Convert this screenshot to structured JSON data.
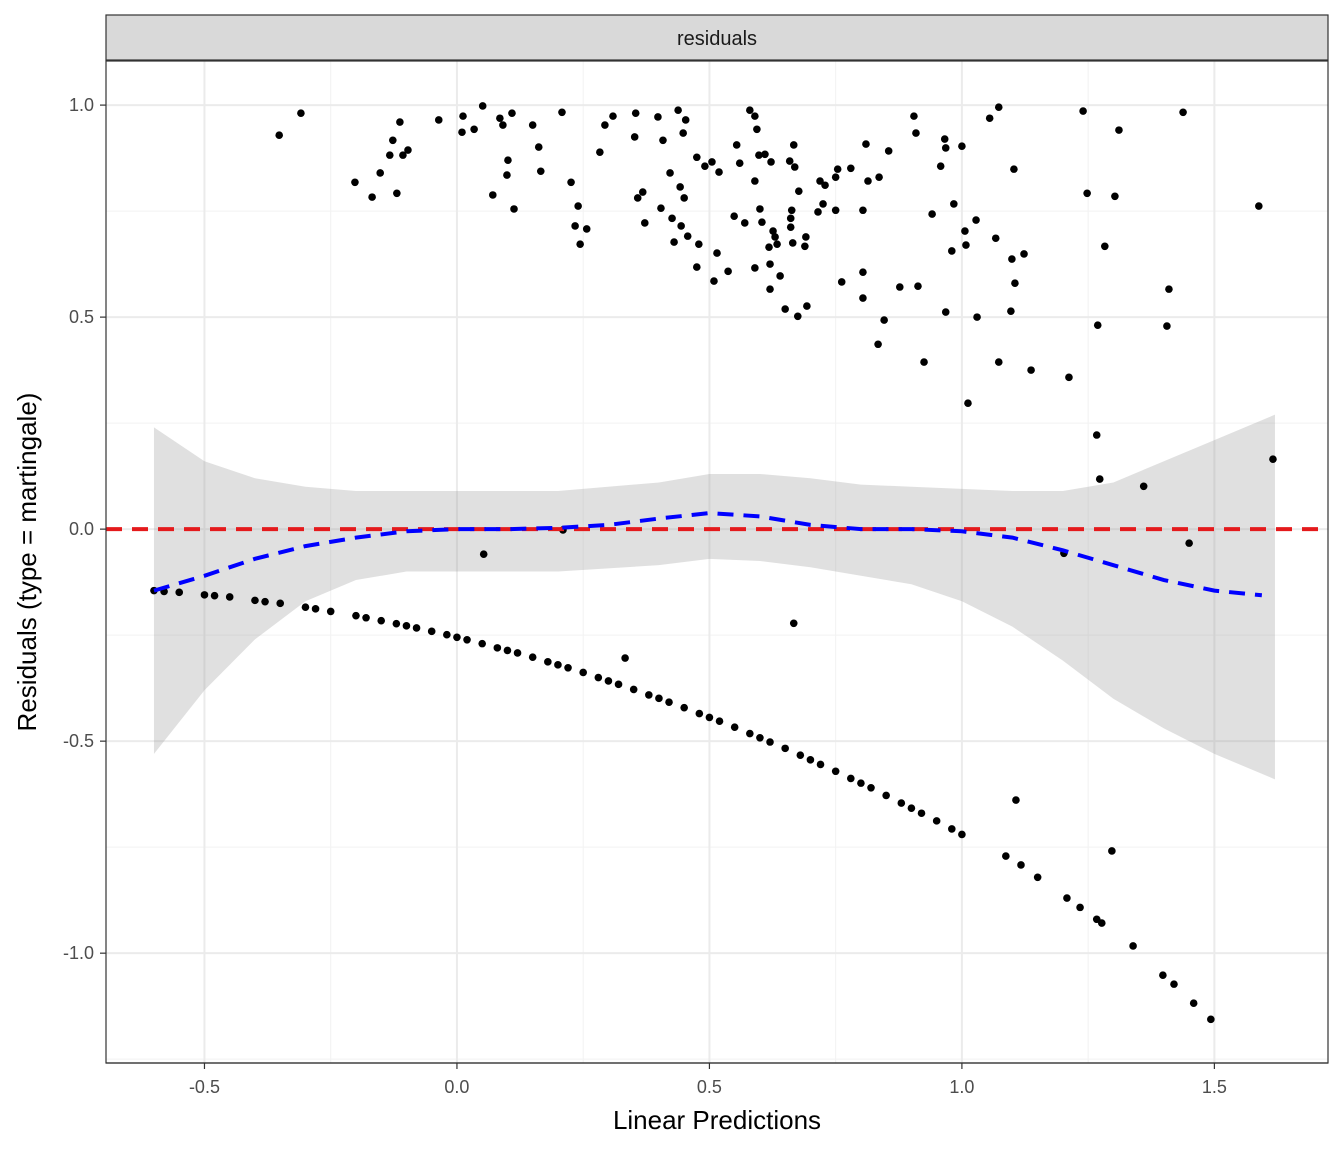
{
  "chart_data": {
    "type": "scatter",
    "strip_label": "residuals",
    "xlabel": "Linear Predictions",
    "ylabel": "Residuals (type = martingale)",
    "xlim": [
      -0.695,
      1.725
    ],
    "ylim": [
      -1.259,
      1.104
    ],
    "x_ticks": [
      -0.5,
      0.0,
      0.5,
      1.0,
      1.5
    ],
    "x_tick_labels": [
      "-0.5",
      "0.0",
      "0.5",
      "1.0",
      "1.5"
    ],
    "y_ticks": [
      1.0,
      0.5,
      0.0,
      -0.5,
      -1.0
    ],
    "y_tick_labels": [
      "1.0",
      "0.5",
      "0.0",
      "-0.5",
      "-1.0"
    ],
    "grid": true,
    "reference_line": {
      "y": 0,
      "color": "#e41a1c",
      "style": "dashed"
    },
    "smooth": {
      "color": "#0000ff",
      "style": "dashed",
      "x": [
        -0.6,
        -0.5,
        -0.4,
        -0.3,
        -0.2,
        -0.1,
        0,
        0.1,
        0.2,
        0.3,
        0.4,
        0.5,
        0.6,
        0.7,
        0.8,
        0.9,
        1.0,
        1.1,
        1.2,
        1.3,
        1.4,
        1.5,
        1.594
      ],
      "y": [
        -0.145,
        -0.11,
        -0.07,
        -0.04,
        -0.02,
        -0.005,
        0,
        0,
        0.003,
        0.01,
        0.025,
        0.038,
        0.03,
        0.01,
        0,
        0,
        -0.005,
        -0.02,
        -0.05,
        -0.085,
        -0.12,
        -0.145,
        -0.156
      ],
      "ci_x": [
        -0.6,
        -0.5,
        -0.4,
        -0.3,
        -0.2,
        -0.1,
        0,
        0.2,
        0.4,
        0.5,
        0.6,
        0.7,
        0.8,
        0.9,
        1.0,
        1.1,
        1.2,
        1.3,
        1.4,
        1.5,
        1.62
      ],
      "ci_upper": [
        0.24,
        0.16,
        0.12,
        0.1,
        0.09,
        0.09,
        0.09,
        0.09,
        0.11,
        0.13,
        0.13,
        0.12,
        0.105,
        0.1,
        0.095,
        0.09,
        0.09,
        0.11,
        0.16,
        0.21,
        0.27
      ],
      "ci_lower": [
        -0.53,
        -0.38,
        -0.26,
        -0.17,
        -0.12,
        -0.1,
        -0.1,
        -0.1,
        -0.085,
        -0.07,
        -0.075,
        -0.09,
        -0.11,
        -0.13,
        -0.17,
        -0.23,
        -0.31,
        -0.4,
        -0.47,
        -0.53,
        -0.59
      ]
    },
    "points": [
      [
        -0.352,
        0.929
      ],
      [
        -0.309,
        0.981
      ],
      [
        -0.202,
        0.818
      ],
      [
        -0.168,
        0.783
      ],
      [
        -0.152,
        0.84
      ],
      [
        -0.133,
        0.882
      ],
      [
        -0.127,
        0.917
      ],
      [
        -0.119,
        0.792
      ],
      [
        -0.113,
        0.96
      ],
      [
        -0.107,
        0.882
      ],
      [
        -0.097,
        0.894
      ],
      [
        -0.036,
        0.965
      ],
      [
        0.01,
        0.936
      ],
      [
        0.012,
        0.974
      ],
      [
        0.034,
        0.943
      ],
      [
        0.051,
        0.998
      ],
      [
        0.071,
        0.788
      ],
      [
        0.085,
        0.969
      ],
      [
        0.091,
        0.953
      ],
      [
        0.099,
        0.835
      ],
      [
        0.101,
        0.87
      ],
      [
        0.109,
        0.981
      ],
      [
        0.113,
        0.755
      ],
      [
        0.15,
        0.953
      ],
      [
        0.162,
        0.901
      ],
      [
        0.166,
        0.844
      ],
      [
        0.208,
        0.983
      ],
      [
        0.226,
        0.818
      ],
      [
        0.234,
        0.715
      ],
      [
        0.24,
        0.762
      ],
      [
        0.244,
        0.672
      ],
      [
        0.257,
        0.708
      ],
      [
        0.283,
        0.889
      ],
      [
        0.293,
        0.953
      ],
      [
        0.309,
        0.974
      ],
      [
        0.352,
        0.925
      ],
      [
        0.354,
        0.981
      ],
      [
        0.358,
        0.781
      ],
      [
        0.368,
        0.795
      ],
      [
        0.372,
        0.722
      ],
      [
        0.398,
        0.972
      ],
      [
        0.404,
        0.757
      ],
      [
        0.408,
        0.917
      ],
      [
        0.422,
        0.84
      ],
      [
        0.426,
        0.733
      ],
      [
        0.43,
        0.677
      ],
      [
        0.438,
        0.988
      ],
      [
        0.442,
        0.807
      ],
      [
        0.444,
        0.715
      ],
      [
        0.448,
        0.934
      ],
      [
        0.45,
        0.781
      ],
      [
        0.453,
        0.965
      ],
      [
        0.457,
        0.691
      ],
      [
        0.475,
        0.877
      ],
      [
        0.475,
        0.618
      ],
      [
        0.479,
        0.672
      ],
      [
        0.491,
        0.856
      ],
      [
        0.505,
        0.866
      ],
      [
        0.509,
        0.585
      ],
      [
        0.515,
        0.651
      ],
      [
        0.519,
        0.842
      ],
      [
        0.537,
        0.608
      ],
      [
        0.549,
        0.738
      ],
      [
        0.554,
        0.906
      ],
      [
        0.56,
        0.863
      ],
      [
        0.57,
        0.722
      ],
      [
        0.58,
        0.988
      ],
      [
        0.59,
        0.974
      ],
      [
        0.59,
        0.821
      ],
      [
        0.59,
        0.616
      ],
      [
        0.594,
        0.943
      ],
      [
        0.598,
        0.882
      ],
      [
        0.6,
        0.755
      ],
      [
        0.604,
        0.724
      ],
      [
        0.61,
        0.884
      ],
      [
        0.618,
        0.665
      ],
      [
        0.62,
        0.625
      ],
      [
        0.62,
        0.566
      ],
      [
        0.622,
        0.866
      ],
      [
        0.626,
        0.703
      ],
      [
        0.63,
        0.689
      ],
      [
        0.634,
        0.672
      ],
      [
        0.64,
        0.597
      ],
      [
        0.65,
        0.519
      ],
      [
        0.659,
        0.868
      ],
      [
        0.661,
        0.733
      ],
      [
        0.661,
        0.712
      ],
      [
        0.663,
        0.752
      ],
      [
        0.665,
        0.675
      ],
      [
        0.667,
        0.906
      ],
      [
        0.669,
        0.854
      ],
      [
        0.675,
        0.502
      ],
      [
        0.677,
        0.797
      ],
      [
        0.689,
        0.667
      ],
      [
        0.691,
        0.689
      ],
      [
        0.693,
        0.526
      ],
      [
        0.715,
        0.748
      ],
      [
        0.719,
        0.821
      ],
      [
        0.725,
        0.767
      ],
      [
        0.729,
        0.811
      ],
      [
        0.75,
        0.83
      ],
      [
        0.75,
        0.752
      ],
      [
        0.754,
        0.849
      ],
      [
        0.762,
        0.583
      ],
      [
        0.78,
        0.851
      ],
      [
        0.804,
        0.606
      ],
      [
        0.804,
        0.545
      ],
      [
        0.804,
        0.752
      ],
      [
        0.81,
        0.908
      ],
      [
        0.814,
        0.821
      ],
      [
        0.834,
        0.436
      ],
      [
        0.836,
        0.83
      ],
      [
        0.846,
        0.493
      ],
      [
        0.855,
        0.892
      ],
      [
        0.877,
        0.571
      ],
      [
        0.905,
        0.974
      ],
      [
        0.909,
        0.934
      ],
      [
        0.913,
        0.573
      ],
      [
        0.925,
        0.394
      ],
      [
        0.941,
        0.743
      ],
      [
        0.958,
        0.856
      ],
      [
        0.966,
        0.92
      ],
      [
        0.968,
        0.899
      ],
      [
        0.968,
        0.512
      ],
      [
        0.98,
        0.656
      ],
      [
        0.984,
        0.767
      ],
      [
        1.0,
        0.903
      ],
      [
        1.006,
        0.703
      ],
      [
        1.008,
        0.67
      ],
      [
        1.012,
        0.297
      ],
      [
        1.028,
        0.729
      ],
      [
        1.03,
        0.5
      ],
      [
        1.055,
        0.969
      ],
      [
        1.067,
        0.686
      ],
      [
        1.073,
        0.995
      ],
      [
        1.073,
        0.394
      ],
      [
        1.097,
        0.514
      ],
      [
        1.099,
        0.637
      ],
      [
        1.103,
        0.849
      ],
      [
        1.105,
        0.58
      ],
      [
        1.123,
        0.649
      ],
      [
        1.137,
        0.375
      ],
      [
        1.212,
        0.358
      ],
      [
        1.24,
        0.986
      ],
      [
        1.248,
        0.792
      ],
      [
        1.267,
        0.222
      ],
      [
        1.269,
        0.481
      ],
      [
        1.273,
        0.118
      ],
      [
        1.283,
        0.667
      ],
      [
        1.303,
        0.785
      ],
      [
        1.311,
        0.941
      ],
      [
        1.36,
        0.101
      ],
      [
        1.406,
        0.479
      ],
      [
        1.41,
        0.566
      ],
      [
        1.438,
        0.983
      ],
      [
        1.588,
        0.762
      ],
      [
        1.616,
        0.165
      ],
      [
        0.053,
        -0.059
      ],
      [
        0.21,
        -0.002
      ],
      [
        0.333,
        -0.304
      ],
      [
        0.667,
        -0.222
      ],
      [
        1.107,
        -0.639
      ],
      [
        1.202,
        -0.057
      ],
      [
        1.297,
        -0.759
      ],
      [
        1.45,
        -0.033
      ],
      [
        -0.6,
        -0.145
      ],
      [
        -0.58,
        -0.147
      ],
      [
        -0.55,
        -0.149
      ],
      [
        -0.5,
        -0.155
      ],
      [
        -0.48,
        -0.157
      ],
      [
        -0.45,
        -0.16
      ],
      [
        -0.4,
        -0.168
      ],
      [
        -0.38,
        -0.171
      ],
      [
        -0.35,
        -0.175
      ],
      [
        -0.3,
        -0.184
      ],
      [
        -0.28,
        -0.188
      ],
      [
        -0.25,
        -0.194
      ],
      [
        -0.2,
        -0.204
      ],
      [
        -0.18,
        -0.209
      ],
      [
        -0.15,
        -0.216
      ],
      [
        -0.12,
        -0.223
      ],
      [
        -0.1,
        -0.228
      ],
      [
        -0.08,
        -0.233
      ],
      [
        -0.05,
        -0.241
      ],
      [
        -0.02,
        -0.249
      ],
      [
        0,
        -0.255
      ],
      [
        0.02,
        -0.261
      ],
      [
        0.05,
        -0.27
      ],
      [
        0.08,
        -0.28
      ],
      [
        0.1,
        -0.286
      ],
      [
        0.12,
        -0.292
      ],
      [
        0.15,
        -0.302
      ],
      [
        0.18,
        -0.313
      ],
      [
        0.2,
        -0.32
      ],
      [
        0.22,
        -0.327
      ],
      [
        0.25,
        -0.338
      ],
      [
        0.28,
        -0.35
      ],
      [
        0.3,
        -0.358
      ],
      [
        0.32,
        -0.366
      ],
      [
        0.35,
        -0.378
      ],
      [
        0.38,
        -0.391
      ],
      [
        0.4,
        -0.399
      ],
      [
        0.42,
        -0.408
      ],
      [
        0.45,
        -0.421
      ],
      [
        0.48,
        -0.435
      ],
      [
        0.5,
        -0.444
      ],
      [
        0.52,
        -0.453
      ],
      [
        0.55,
        -0.467
      ],
      [
        0.58,
        -0.482
      ],
      [
        0.6,
        -0.492
      ],
      [
        0.62,
        -0.502
      ],
      [
        0.65,
        -0.517
      ],
      [
        0.68,
        -0.533
      ],
      [
        0.7,
        -0.544
      ],
      [
        0.72,
        -0.555
      ],
      [
        0.75,
        -0.571
      ],
      [
        0.78,
        -0.588
      ],
      [
        0.8,
        -0.599
      ],
      [
        0.82,
        -0.61
      ],
      [
        0.85,
        -0.628
      ],
      [
        0.88,
        -0.646
      ],
      [
        0.9,
        -0.658
      ],
      [
        0.92,
        -0.67
      ],
      [
        0.95,
        -0.688
      ],
      [
        0.98,
        -0.707
      ],
      [
        1.0,
        -0.72
      ],
      [
        1.087,
        -0.771
      ],
      [
        1.117,
        -0.792
      ],
      [
        1.15,
        -0.821
      ],
      [
        1.208,
        -0.87
      ],
      [
        1.234,
        -0.892
      ],
      [
        1.267,
        -0.92
      ],
      [
        1.277,
        -0.929
      ],
      [
        1.339,
        -0.983
      ],
      [
        1.398,
        -1.052
      ],
      [
        1.42,
        -1.073
      ],
      [
        1.459,
        -1.118
      ],
      [
        1.493,
        -1.156
      ]
    ]
  }
}
